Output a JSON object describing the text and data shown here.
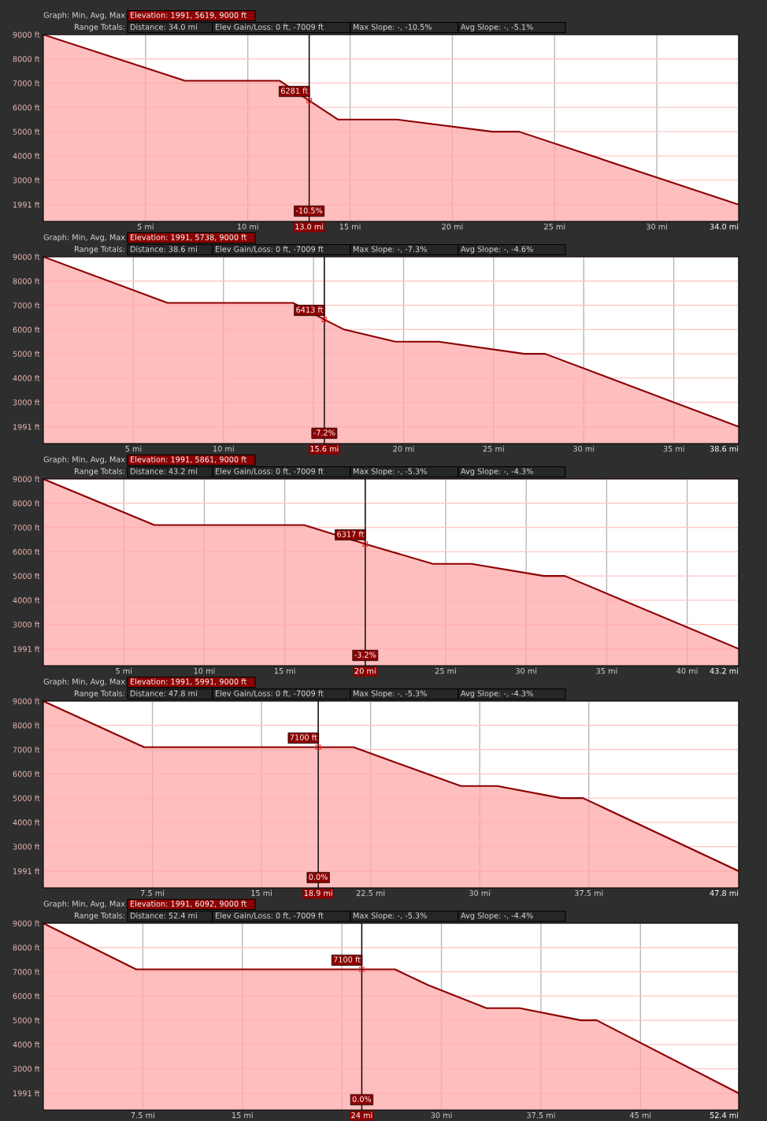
{
  "chart_data": [
    {
      "type": "area",
      "title": "Graph: Min, Avg, Max",
      "subtitle": "Elevation: 1991, 5619, 9000 ft",
      "x": [
        0,
        6.93,
        11.55,
        13.0,
        14.4,
        17.3,
        21.95,
        23.26,
        34.0
      ],
      "series": [
        {
          "color": "#8b0000",
          "values": [
            9000,
            7100,
            7100,
            6281,
            5500,
            5500,
            5000,
            5000,
            1991
          ]
        }
      ],
      "xlim": [
        0,
        34.0
      ],
      "xticks": [
        {
          "value": 5,
          "label": "5 mi"
        },
        {
          "value": 10,
          "label": "10 mi"
        },
        {
          "value": 13.0,
          "label": "13.0 mi"
        },
        {
          "value": 15,
          "label": "15 mi"
        },
        {
          "value": 20,
          "label": "20 mi"
        },
        {
          "value": 25,
          "label": "25 mi"
        },
        {
          "value": 30,
          "label": "30 mi"
        },
        {
          "value": 34.0,
          "label": "34.0 mi"
        }
      ],
      "ylim": [
        1300,
        9000
      ],
      "yticks": [
        {
          "value": 1991,
          "label": "1991 ft"
        },
        {
          "value": 3000,
          "label": "3000 ft"
        },
        {
          "value": 4000,
          "label": "4000 ft"
        },
        {
          "value": 5000,
          "label": "5000 ft"
        },
        {
          "value": 6000,
          "label": "6000 ft"
        },
        {
          "value": 7000,
          "label": "7000 ft"
        },
        {
          "value": 8000,
          "label": "8000 ft"
        },
        {
          "value": 9000,
          "label": "9000 ft"
        }
      ],
      "grid": true,
      "ref_lines": [
        {
          "axis": "x",
          "value": 13.0,
          "color": "#000000"
        }
      ],
      "annotations": [
        "Range Totals:",
        "Distance: 34.0 mi",
        "Elev Gain/Loss: 0 ft, -7009 ft",
        "Max Slope: -, -10.5%",
        "Avg Slope: -, -5.1%",
        {
          "text": "6281 ft",
          "x": 13.0,
          "y": 6281
        },
        {
          "text": "-10.5%",
          "x": 13.0
        }
      ]
    },
    {
      "type": "area",
      "title": "Graph: Min, Avg, Max",
      "subtitle": "Elevation: 1991, 5738, 9000 ft",
      "x": [
        0,
        6.9,
        13.86,
        15.6,
        16.7,
        19.55,
        21.95,
        26.7,
        27.85,
        38.6
      ],
      "series": [
        {
          "color": "#8b0000",
          "values": [
            9000,
            7100,
            7100,
            6413,
            6000,
            5500,
            5500,
            5000,
            5000,
            1991
          ]
        }
      ],
      "xlim": [
        0,
        38.6
      ],
      "xticks": [
        {
          "value": 5,
          "label": "5 mi"
        },
        {
          "value": 10,
          "label": "10 mi"
        },
        {
          "value": 15,
          "label": null
        },
        {
          "value": 15.6,
          "label": "15.6 mi"
        },
        {
          "value": 20,
          "label": "20 mi"
        },
        {
          "value": 25,
          "label": "25 mi"
        },
        {
          "value": 30,
          "label": "30 mi"
        },
        {
          "value": 35,
          "label": "35 mi"
        },
        {
          "value": 38.6,
          "label": "38.6 mi"
        }
      ],
      "ylim": [
        1300,
        9000
      ],
      "yticks": [
        {
          "value": 1991,
          "label": "1991 ft"
        },
        {
          "value": 3000,
          "label": "3000 ft"
        },
        {
          "value": 4000,
          "label": "4000 ft"
        },
        {
          "value": 5000,
          "label": "5000 ft"
        },
        {
          "value": 6000,
          "label": "6000 ft"
        },
        {
          "value": 7000,
          "label": "7000 ft"
        },
        {
          "value": 8000,
          "label": "8000 ft"
        },
        {
          "value": 9000,
          "label": "9000 ft"
        }
      ],
      "grid": true,
      "ref_lines": [
        {
          "axis": "x",
          "value": 15.6,
          "color": "#000000"
        }
      ],
      "annotations": [
        "Range Totals:",
        "Distance: 38.6 mi",
        "Elev Gain/Loss: 0 ft, -7009 ft",
        "Max Slope: -, -7.3%",
        "Avg Slope: -, -4.6%",
        {
          "text": "6413 ft",
          "x": 15.6,
          "y": 6413
        },
        {
          "text": "-7.2%",
          "x": 15.6
        }
      ]
    },
    {
      "type": "area",
      "title": "Graph: Min, Avg, Max",
      "subtitle": "Elevation: 1991, 5861, 9000 ft",
      "x": [
        0,
        6.9,
        16.2,
        20,
        24.2,
        26.6,
        31.1,
        32.4,
        43.2
      ],
      "series": [
        {
          "color": "#8b0000",
          "values": [
            9000,
            7100,
            7100,
            6317,
            5500,
            5500,
            5000,
            5000,
            1991
          ]
        }
      ],
      "xlim": [
        0,
        43.2
      ],
      "xticks": [
        {
          "value": 5,
          "label": "5 mi"
        },
        {
          "value": 10,
          "label": "10 mi"
        },
        {
          "value": 15,
          "label": "15 mi"
        },
        {
          "value": 20,
          "label": "20 mi"
        },
        {
          "value": 25,
          "label": "25 mi"
        },
        {
          "value": 30,
          "label": "30 mi"
        },
        {
          "value": 35,
          "label": "35 mi"
        },
        {
          "value": 40,
          "label": "40 mi"
        },
        {
          "value": 43.2,
          "label": "43.2 mi"
        }
      ],
      "ylim": [
        1300,
        9000
      ],
      "yticks": [
        {
          "value": 1991,
          "label": "1991 ft"
        },
        {
          "value": 3000,
          "label": "3000 ft"
        },
        {
          "value": 4000,
          "label": "4000 ft"
        },
        {
          "value": 5000,
          "label": "5000 ft"
        },
        {
          "value": 6000,
          "label": "6000 ft"
        },
        {
          "value": 7000,
          "label": "7000 ft"
        },
        {
          "value": 8000,
          "label": "8000 ft"
        },
        {
          "value": 9000,
          "label": "9000 ft"
        }
      ],
      "grid": true,
      "ref_lines": [
        {
          "axis": "x",
          "value": 20,
          "color": "#000000"
        }
      ],
      "annotations": [
        "Range Totals:",
        "Distance: 43.2 mi",
        "Elev Gain/Loss: 0 ft, -7009 ft",
        "Max Slope: -, -5.3%",
        "Avg Slope: -, -4.3%",
        {
          "text": "6317 ft",
          "x": 20,
          "y": 6317
        },
        {
          "text": "-3.2%",
          "x": 20
        }
      ]
    },
    {
      "type": "area",
      "title": "Graph: Min, Avg, Max",
      "subtitle": "Elevation: 1991, 5991, 9000 ft",
      "x": [
        0,
        6.93,
        18.9,
        21.33,
        28.7,
        31.2,
        35.6,
        37.1,
        47.8
      ],
      "series": [
        {
          "color": "#8b0000",
          "values": [
            9000,
            7100,
            7100,
            7100,
            5500,
            5500,
            5000,
            5000,
            1991
          ]
        }
      ],
      "xlim": [
        0,
        47.8
      ],
      "xticks": [
        {
          "value": 7.5,
          "label": "7.5 mi"
        },
        {
          "value": 15,
          "label": "15 mi"
        },
        {
          "value": 18.9,
          "label": "18.9 mi"
        },
        {
          "value": 22.5,
          "label": "22.5 mi"
        },
        {
          "value": 30,
          "label": "30 mi"
        },
        {
          "value": 37.5,
          "label": "37.5 mi"
        },
        {
          "value": 47.8,
          "label": "47.8 mi"
        }
      ],
      "ylim": [
        1300,
        9000
      ],
      "yticks": [
        {
          "value": 1991,
          "label": "1991 ft"
        },
        {
          "value": 3000,
          "label": "3000 ft"
        },
        {
          "value": 4000,
          "label": "4000 ft"
        },
        {
          "value": 5000,
          "label": "5000 ft"
        },
        {
          "value": 6000,
          "label": "6000 ft"
        },
        {
          "value": 7000,
          "label": "7000 ft"
        },
        {
          "value": 8000,
          "label": "8000 ft"
        },
        {
          "value": 9000,
          "label": "9000 ft"
        }
      ],
      "grid": true,
      "ref_lines": [
        {
          "axis": "x",
          "value": 18.9,
          "color": "#000000"
        }
      ],
      "annotations": [
        "Range Totals:",
        "Distance: 47.8 mi",
        "Elev Gain/Loss: 0 ft, -7009 ft",
        "Max Slope: -, -5.3%",
        "Avg Slope: -, -4.3%",
        {
          "text": "7100 ft",
          "x": 18.9,
          "y": 7100
        },
        {
          "text": "0.0%",
          "x": 18.9
        }
      ]
    },
    {
      "type": "area",
      "title": "Graph: Min, Avg, Max",
      "subtitle": "Elevation: 1991, 6092, 9000 ft",
      "x": [
        0,
        7.0,
        24,
        26.5,
        29.0,
        33.4,
        35.9,
        40.5,
        41.7,
        52.4
      ],
      "series": [
        {
          "color": "#8b0000",
          "values": [
            9000,
            7100,
            7100,
            7100,
            6450,
            5500,
            5500,
            5000,
            5000,
            1991
          ]
        }
      ],
      "xlim": [
        0,
        52.4
      ],
      "xticks": [
        {
          "value": 7.5,
          "label": "7.5 mi"
        },
        {
          "value": 15,
          "label": "15 mi"
        },
        {
          "value": 22.5,
          "label": null
        },
        {
          "value": 24,
          "label": "24 mi"
        },
        {
          "value": 30,
          "label": "30 mi"
        },
        {
          "value": 37.5,
          "label": "37.5 mi"
        },
        {
          "value": 45,
          "label": "45 mi"
        },
        {
          "value": 52.4,
          "label": "52.4 mi"
        }
      ],
      "ylim": [
        1300,
        9000
      ],
      "yticks": [
        {
          "value": 1991,
          "label": "1991 ft"
        },
        {
          "value": 3000,
          "label": "3000 ft"
        },
        {
          "value": 4000,
          "label": "4000 ft"
        },
        {
          "value": 5000,
          "label": "5000 ft"
        },
        {
          "value": 6000,
          "label": "6000 ft"
        },
        {
          "value": 7000,
          "label": "7000 ft"
        },
        {
          "value": 8000,
          "label": "8000 ft"
        },
        {
          "value": 9000,
          "label": "9000 ft"
        }
      ],
      "grid": true,
      "ref_lines": [
        {
          "axis": "x",
          "value": 24,
          "color": "#000000"
        }
      ],
      "annotations": [
        "Range Totals:",
        "Distance: 52.4 mi",
        "Elev Gain/Loss: 0 ft, -7009 ft",
        "Max Slope: -, -5.3%",
        "Avg Slope: -, -4.4%",
        {
          "text": "7100 ft",
          "x": 24,
          "y": 7100
        },
        {
          "text": "0.0%",
          "x": 24
        }
      ]
    }
  ]
}
